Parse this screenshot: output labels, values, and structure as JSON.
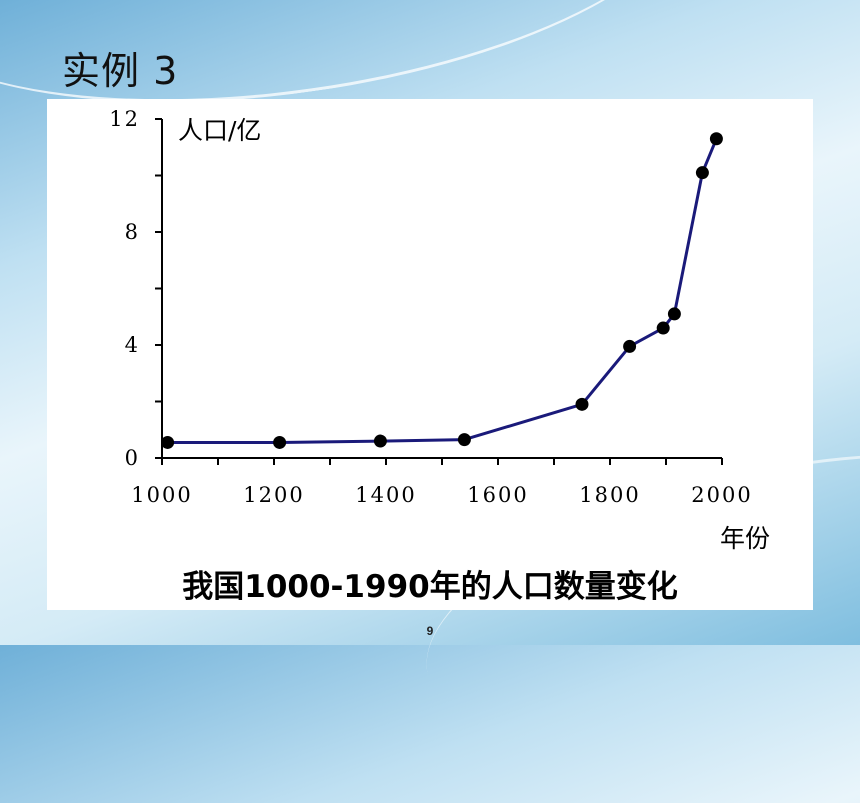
{
  "slide": {
    "title": "实例 3",
    "page_number": "9"
  },
  "chart_data": {
    "type": "line",
    "caption": "我国1000-1990年的人口数量变化",
    "ylabel": "人口/亿",
    "xlabel": "年份",
    "x_ticks": [
      "1000",
      "1200",
      "1400",
      "1600",
      "1800",
      "2000"
    ],
    "y_ticks": [
      "0",
      "4",
      "8",
      "12"
    ],
    "xlim": [
      1000,
      2000
    ],
    "ylim": [
      0,
      12
    ],
    "line_color": "#1a1a7a",
    "marker_color": "#000000",
    "series": [
      {
        "x": [
          1010,
          1210,
          1390,
          1540,
          1750,
          1835,
          1895,
          1915,
          1965,
          1990
        ],
        "values": [
          0.55,
          0.55,
          0.6,
          0.65,
          1.9,
          3.95,
          4.6,
          5.1,
          10.1,
          11.3
        ]
      }
    ]
  }
}
